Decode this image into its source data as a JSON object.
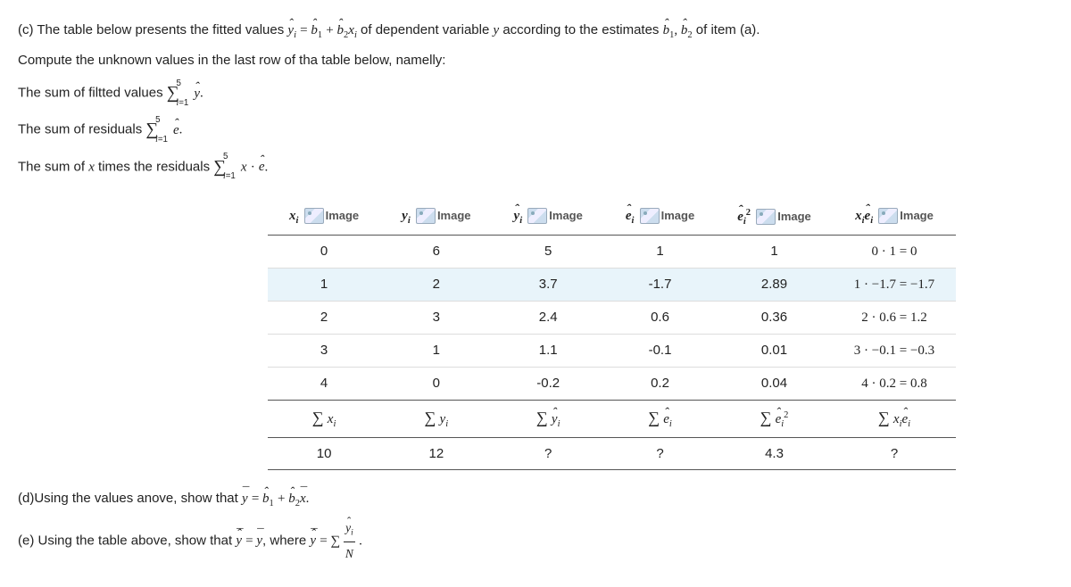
{
  "intro": {
    "line1_a": "(c) The table below presents the fitted values ",
    "line1_b": " of dependent variable ",
    "line1_c": " according to the estimates ",
    "line1_d": " of item (a).",
    "line2": "Compute the unknown values in the last row of tha table below, namelly:",
    "line3_a": "The sum of filtted values ",
    "line4_a": "The sum of residuals ",
    "line5_a": "The sum of ",
    "line5_b": " times the residuals "
  },
  "ph_label": "Image",
  "table": {
    "rows": [
      {
        "xi": "0",
        "yi": "6",
        "yhat": "5",
        "e": "1",
        "e2": "1",
        "xe": "0 · 1 = 0"
      },
      {
        "xi": "1",
        "yi": "2",
        "yhat": "3.7",
        "e": "-1.7",
        "e2": "2.89",
        "xe": "1 · −1.7 = −1.7",
        "hl": true
      },
      {
        "xi": "2",
        "yi": "3",
        "yhat": "2.4",
        "e": "0.6",
        "e2": "0.36",
        "xe": "2 · 0.6 = 1.2"
      },
      {
        "xi": "3",
        "yi": "1",
        "yhat": "1.1",
        "e": "-0.1",
        "e2": "0.01",
        "xe": "3 · −0.1 = −0.3"
      },
      {
        "xi": "4",
        "yi": "0",
        "yhat": "-0.2",
        "e": "0.2",
        "e2": "0.04",
        "xe": "4 · 0.2 = 0.8"
      }
    ],
    "sums": {
      "sxi": "10",
      "syi": "12",
      "syhat": "?",
      "se": "?",
      "se2": "4.3",
      "sxe": "?"
    }
  },
  "part_d_a": "(d)Using the values anove, show that ",
  "part_e_a": "(e) Using the table above, show that ",
  "part_e_b": ", where "
}
